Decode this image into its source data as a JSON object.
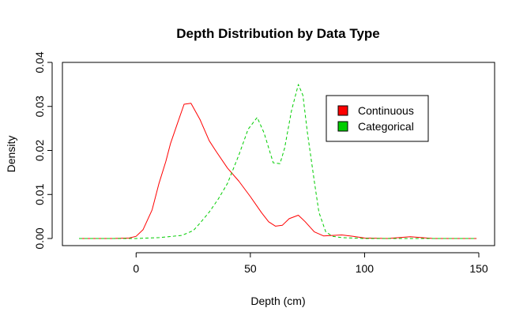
{
  "chart_data": {
    "type": "line",
    "title": "Depth Distribution by Data Type",
    "xlabel": "Depth (cm)",
    "ylabel": "Density",
    "xlim": [
      -25,
      150
    ],
    "ylim": [
      0,
      0.04
    ],
    "x_ticks": [
      0,
      50,
      100,
      150
    ],
    "x_tick_labels": [
      "0",
      "50",
      "100",
      "150"
    ],
    "y_ticks": [
      0,
      0.01,
      0.02,
      0.03,
      0.04
    ],
    "y_tick_labels": [
      "0.00",
      "0.01",
      "0.02",
      "0.03",
      "0.04"
    ],
    "grid": false,
    "legend_position": "top-right",
    "series": [
      {
        "name": "Continuous",
        "color": "#ff0000",
        "line_style": "solid",
        "x": [
          -25,
          -10,
          -3,
          0,
          3,
          7,
          10,
          13,
          15,
          18,
          21,
          24,
          28,
          32,
          35,
          40,
          45,
          50,
          55,
          58,
          61,
          64,
          67,
          71,
          74,
          78,
          82,
          86,
          90,
          95,
          100,
          110,
          115,
          120,
          125,
          130,
          140,
          149
        ],
        "y": [
          0,
          0,
          0.0001,
          0.0005,
          0.002,
          0.0065,
          0.0125,
          0.0175,
          0.0215,
          0.026,
          0.0305,
          0.0307,
          0.027,
          0.0222,
          0.0198,
          0.016,
          0.013,
          0.0095,
          0.0058,
          0.0038,
          0.0028,
          0.003,
          0.0045,
          0.0053,
          0.0038,
          0.0015,
          0.0006,
          0.0007,
          0.0008,
          0.0005,
          0.0001,
          0,
          0.0002,
          0.0004,
          0.0002,
          0,
          0,
          0
        ]
      },
      {
        "name": "Categorical",
        "color": "#00cd00",
        "line_style": "dashed",
        "x": [
          -25,
          0,
          10,
          20,
          25,
          28,
          32,
          36,
          40,
          45,
          49,
          53,
          56,
          60,
          63,
          65,
          68,
          71,
          73,
          75,
          78,
          80,
          83,
          86,
          90,
          100,
          120,
          149
        ],
        "y": [
          0,
          0,
          0.0002,
          0.0007,
          0.0018,
          0.0035,
          0.006,
          0.009,
          0.0125,
          0.019,
          0.0248,
          0.0275,
          0.024,
          0.0172,
          0.017,
          0.0205,
          0.029,
          0.035,
          0.0325,
          0.024,
          0.013,
          0.006,
          0.0015,
          0.0005,
          0.0002,
          0,
          0,
          0
        ]
      }
    ]
  }
}
